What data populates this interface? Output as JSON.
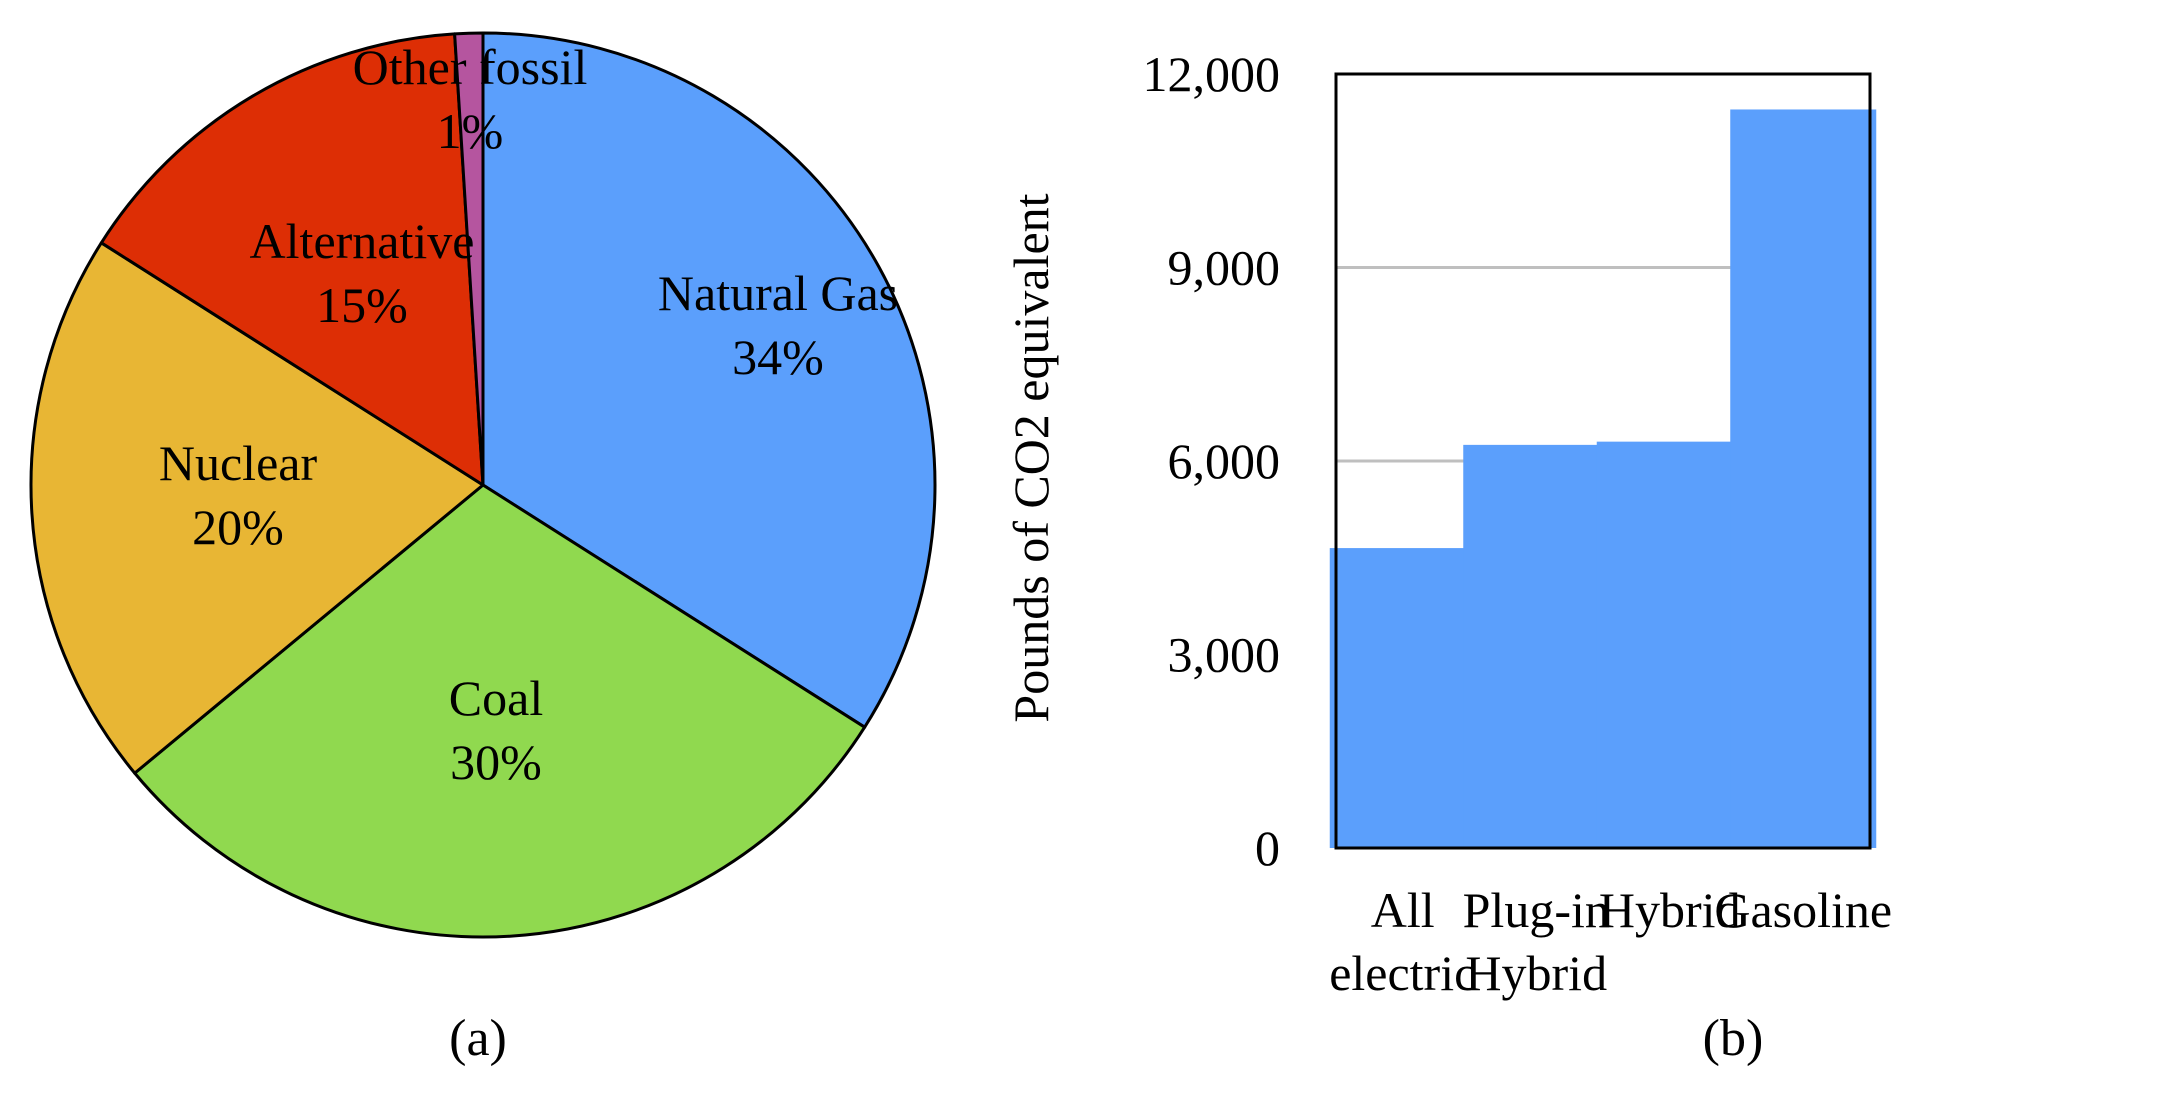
{
  "chart_data": [
    {
      "type": "pie",
      "caption": "(a)",
      "slices": [
        {
          "label": "Natural Gas",
          "value_text": "34%",
          "value": 34,
          "color": "#5B9FFC"
        },
        {
          "label": "Coal",
          "value_text": "30%",
          "value": 30,
          "color": "#90D94F"
        },
        {
          "label": "Nuclear",
          "value_text": "20%",
          "value": 20,
          "color": "#E8B634"
        },
        {
          "label": "Alternative",
          "value_text": "15%",
          "value": 15,
          "color": "#DD2E05"
        },
        {
          "label": "Other fossil",
          "value_text": "1%",
          "value": 1,
          "color": "#B5559F"
        }
      ]
    },
    {
      "type": "bar",
      "caption": "(b)",
      "ylabel": "Pounds of CO2 equivalent",
      "categories": [
        "All electric",
        "Plug-in Hybrid",
        "Hybrid",
        "Gasoline"
      ],
      "values": [
        4650,
        6250,
        6300,
        11450
      ],
      "ylim": [
        0,
        12000
      ],
      "yticks": [
        0,
        3000,
        6000,
        9000,
        12000
      ],
      "ytick_labels": [
        "0",
        "3,000",
        "6,000",
        "9,000",
        "12,000"
      ],
      "grid": true,
      "bar_color": "#5B9FFC",
      "grid_color": "#BFBFBF"
    }
  ]
}
